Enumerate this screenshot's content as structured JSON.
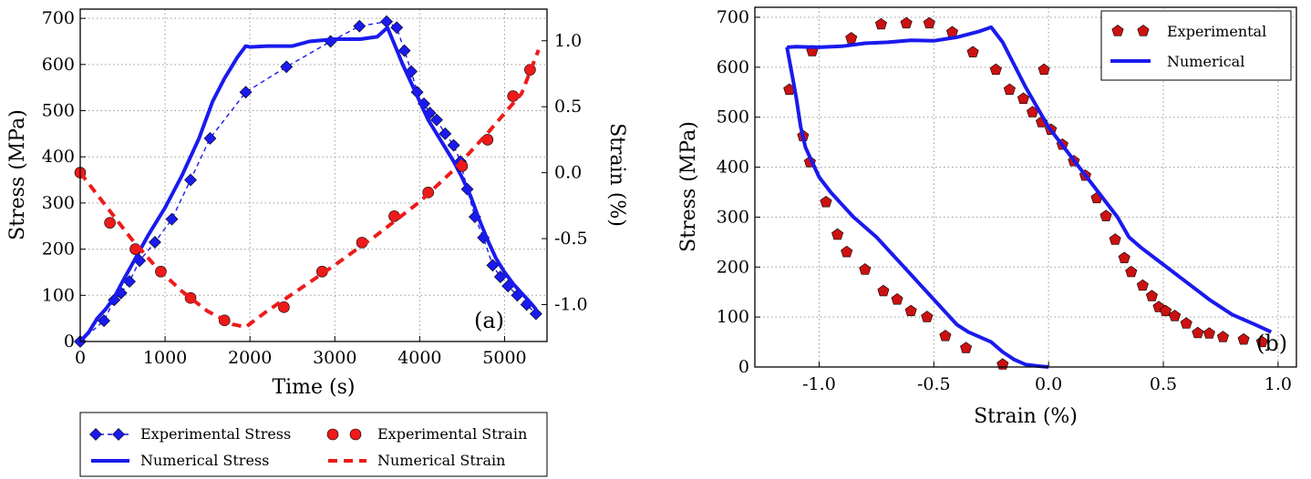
{
  "colors": {
    "blue": "#1a1aee",
    "red": "#ee1a1a",
    "marker_red": "#cc1111",
    "grid": "#9a9a9a"
  },
  "chart_data": [
    {
      "type": "line",
      "panel_label": "(a)",
      "xlabel": "Time (s)",
      "ylabel": "Stress (MPa)",
      "y2label": "Strain (%)",
      "xlim": [
        0,
        5500
      ],
      "ylim": [
        0,
        720
      ],
      "y2lim": [
        -1.28,
        1.24
      ],
      "xticks": [
        "0",
        "1000",
        "2000",
        "3000",
        "4000",
        "5000"
      ],
      "yticks": [
        "0",
        "100",
        "200",
        "300",
        "400",
        "500",
        "600",
        "700"
      ],
      "y2ticks": [
        "-1.0",
        "-0.5",
        "0.0",
        "0.5",
        "1.0"
      ],
      "grid": true,
      "legend_position": "below",
      "series": [
        {
          "name": "Experimental Stress",
          "axis": "left",
          "style": "diamond-dashed",
          "x": [
            0,
            280,
            400,
            480,
            580,
            700,
            880,
            1080,
            1300,
            1530,
            1950,
            2430,
            2950,
            3290,
            3610,
            3730,
            3820,
            3900,
            3970,
            4050,
            4120,
            4200,
            4300,
            4400,
            4480,
            4560,
            4650,
            4750,
            4860,
            4950,
            5040,
            5150,
            5260,
            5370
          ],
          "y": [
            0,
            45,
            90,
            105,
            130,
            175,
            215,
            265,
            350,
            440,
            540,
            595,
            650,
            683,
            693,
            680,
            630,
            585,
            540,
            515,
            495,
            480,
            450,
            425,
            390,
            330,
            270,
            225,
            165,
            140,
            120,
            100,
            80,
            60
          ]
        },
        {
          "name": "Numerical Stress",
          "axis": "left",
          "style": "solid",
          "x": [
            0,
            100,
            200,
            300,
            400,
            500,
            650,
            800,
            1000,
            1200,
            1400,
            1560,
            1700,
            1850,
            1950,
            2000,
            2200,
            2500,
            2700,
            3000,
            3300,
            3500,
            3620,
            3700,
            3800,
            3900,
            4000,
            4100,
            4200,
            4300,
            4400,
            4500,
            4600,
            4700,
            4800,
            4900,
            5000,
            5100,
            5200,
            5300,
            5370
          ],
          "y": [
            0,
            20,
            50,
            70,
            95,
            130,
            180,
            230,
            290,
            360,
            440,
            520,
            570,
            615,
            640,
            638,
            640,
            640,
            650,
            655,
            655,
            660,
            680,
            645,
            600,
            560,
            520,
            480,
            450,
            420,
            390,
            355,
            315,
            265,
            220,
            180,
            150,
            125,
            105,
            85,
            70
          ]
        },
        {
          "name": "Experimental Strain",
          "axis": "right",
          "style": "circle",
          "x": [
            0,
            350,
            650,
            950,
            1300,
            1700,
            2400,
            2850,
            3320,
            3700,
            4100,
            4500,
            4800,
            5100,
            5300
          ],
          "y": [
            0.0,
            -0.38,
            -0.58,
            -0.75,
            -0.95,
            -1.12,
            -1.02,
            -0.75,
            -0.53,
            -0.33,
            -0.15,
            0.05,
            0.25,
            0.58,
            0.78
          ]
        },
        {
          "name": "Numerical Strain",
          "axis": "right",
          "style": "dashed",
          "x": [
            0,
            300,
            600,
            900,
            1200,
            1500,
            1800,
            1950,
            2200,
            2500,
            3000,
            3500,
            4000,
            4400,
            4800,
            5200,
            5400
          ],
          "y": [
            0.0,
            -0.25,
            -0.5,
            -0.72,
            -0.9,
            -1.05,
            -1.15,
            -1.17,
            -1.05,
            -0.92,
            -0.7,
            -0.47,
            -0.22,
            0.02,
            0.3,
            0.6,
            0.93
          ]
        }
      ]
    },
    {
      "type": "scatter",
      "panel_label": "(b)",
      "xlabel": "Strain (%)",
      "ylabel": "Stress (MPa)",
      "xlim": [
        -1.28,
        1.08
      ],
      "ylim": [
        0,
        720
      ],
      "xticks": [
        "-1.0",
        "-0.5",
        "0.0",
        "0.5",
        "1.0"
      ],
      "xtick_values": [
        -1.0,
        -0.5,
        0.0,
        0.5,
        1.0
      ],
      "yticks": [
        "0",
        "100",
        "200",
        "300",
        "400",
        "500",
        "600",
        "700"
      ],
      "grid": true,
      "legend_position": "top-right",
      "series": [
        {
          "name": "Experimental",
          "style": "pentagon",
          "x": [
            -1.13,
            -1.07,
            -1.04,
            -0.97,
            -0.92,
            -0.88,
            -0.8,
            -0.72,
            -0.66,
            -0.6,
            -0.53,
            -0.45,
            -0.36,
            -0.2,
            -0.02,
            -1.03,
            -0.86,
            -0.73,
            -0.62,
            -0.52,
            -0.42,
            -0.33,
            -0.23,
            -0.17,
            -0.11,
            -0.07,
            -0.03,
            0.01,
            0.06,
            0.11,
            0.16,
            0.21,
            0.25,
            0.29,
            0.33,
            0.36,
            0.41,
            0.45,
            0.48,
            0.51,
            0.55,
            0.6,
            0.65,
            0.7,
            0.76,
            0.85,
            0.93
          ],
          "y": [
            555,
            462,
            410,
            330,
            265,
            230,
            195,
            152,
            135,
            112,
            100,
            62,
            38,
            5,
            595,
            632,
            658,
            686,
            688,
            688,
            670,
            630,
            595,
            555,
            537,
            510,
            490,
            475,
            445,
            412,
            383,
            338,
            302,
            255,
            218,
            190,
            163,
            142,
            120,
            112,
            102,
            87,
            68,
            67,
            60,
            55,
            50
          ]
        },
        {
          "name": "Numerical",
          "style": "solid",
          "x": [
            -1.14,
            -1.12,
            -1.1,
            -1.08,
            -1.06,
            -1.03,
            -1.0,
            -0.95,
            -0.9,
            -0.85,
            -0.8,
            -0.75,
            -0.7,
            -0.65,
            -0.6,
            -0.55,
            -0.5,
            -0.45,
            -0.4,
            -0.35,
            -0.3,
            -0.25,
            -0.2,
            -0.15,
            -0.1,
            -0.05,
            0.0
          ],
          "y": [
            640,
            590,
            540,
            480,
            440,
            410,
            380,
            350,
            325,
            300,
            280,
            260,
            235,
            210,
            185,
            160,
            135,
            110,
            85,
            70,
            60,
            50,
            30,
            15,
            5,
            2,
            0
          ]
        },
        {
          "name": "Numerical",
          "style": "solid",
          "x": [
            -1.14,
            -1.1,
            -1.0,
            -0.9,
            -0.8,
            -0.7,
            -0.6,
            -0.5,
            -0.4,
            -0.3,
            -0.25,
            -0.2,
            -0.1,
            0.0,
            0.1,
            0.2,
            0.3,
            0.35,
            0.4,
            0.5,
            0.6,
            0.7,
            0.8,
            0.9,
            0.97
          ],
          "y": [
            640,
            641,
            640,
            642,
            648,
            650,
            654,
            653,
            660,
            672,
            680,
            650,
            560,
            480,
            420,
            360,
            300,
            260,
            240,
            205,
            170,
            135,
            105,
            85,
            70
          ]
        }
      ]
    }
  ]
}
